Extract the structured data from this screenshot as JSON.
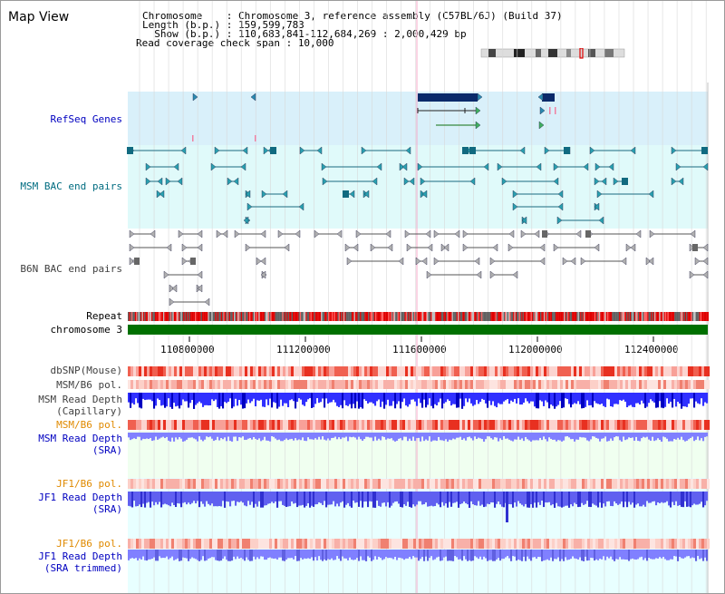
{
  "title": "Map View",
  "header": {
    "chromosome_label": "Chromosome    : Chromosome 3, reference assembly (C57BL/6J) (Build 37)",
    "length_label": "Length (b.p.) : 159,599,783",
    "show_label": "  Show (b.p.) : 110,683,841-112,684,269 : 2,000,429 bp",
    "coverage_label": "Read coverage check span : 10,000"
  },
  "tracks": {
    "refseq": "RefSeq Genes",
    "msm_bac": "MSM BAC end pairs",
    "b6n_bac": "B6N BAC end pairs",
    "repeat": "Repeat",
    "chromosome": "chromosome 3",
    "dbsnp": "dbSNP(Mouse)",
    "msm_b6_pol": "MSM/B6 pol.",
    "msm_read_depth_cap_1": "MSM Read Depth",
    "msm_read_depth_cap_2": "(Capillary)",
    "msm_b6_pol_2": "MSM/B6 pol.",
    "msm_read_depth_sra_1": "MSM Read Depth",
    "msm_read_depth_sra_2": "(SRA)",
    "jf1_b6_pol": "JF1/B6 pol.",
    "jf1_read_depth_sra_1": "JF1 Read Depth",
    "jf1_read_depth_sra_2": "(SRA)",
    "jf1_b6_pol_2": "JF1/B6 pol.",
    "jf1_read_depth_trim_1": "JF1 Read Depth",
    "jf1_read_depth_trim_2": "(SRA trimmed)"
  },
  "axis": {
    "ticks": [
      "110800000",
      "111200000",
      "111600000",
      "112000000",
      "112400000"
    ]
  },
  "colors": {
    "refseq_bg": "#d9f0fa",
    "msm_bg": "#e0fafa",
    "b6n_bg": "#ffffff",
    "repeat_red": "#e00000",
    "chromosome_green": "#007000",
    "sra_bg": "#f0fff0",
    "depth_blue": "#3030ff",
    "depth_light": "#8080ff"
  }
}
